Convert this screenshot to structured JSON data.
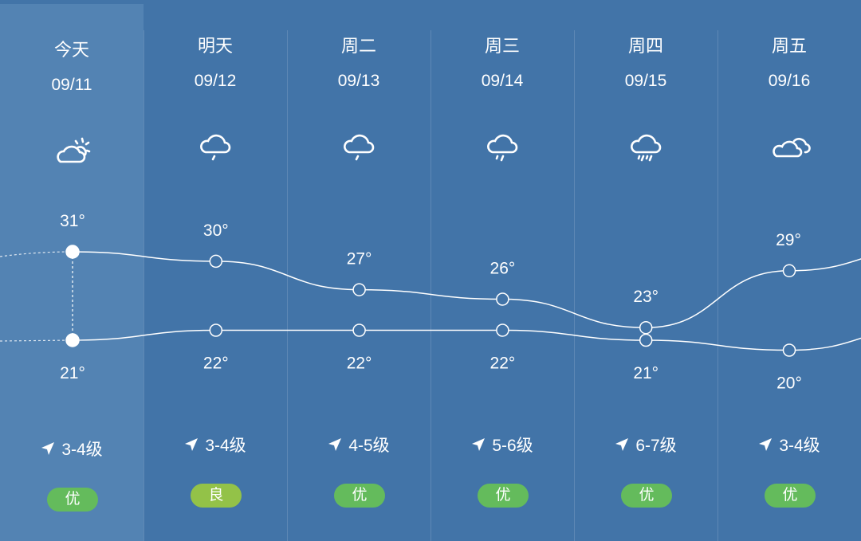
{
  "colors": {
    "background": "#4274a8",
    "today_background": "#5383b3",
    "badge_good": "#64bb5c",
    "badge_moderate": "#93c248"
  },
  "days": [
    {
      "day": "今天",
      "date": "09/11",
      "icon": "partly-cloudy-icon",
      "high": 31,
      "high_label": "31°",
      "low": 21,
      "low_label": "21°",
      "wind": "3-4级",
      "aqi": "优",
      "aqi_level": "good"
    },
    {
      "day": "明天",
      "date": "09/12",
      "icon": "light-rain-icon",
      "high": 30,
      "high_label": "30°",
      "low": 22,
      "low_label": "22°",
      "wind": "3-4级",
      "aqi": "良",
      "aqi_level": "moderate"
    },
    {
      "day": "周二",
      "date": "09/13",
      "icon": "light-rain-icon",
      "high": 27,
      "high_label": "27°",
      "low": 22,
      "low_label": "22°",
      "wind": "4-5级",
      "aqi": "优",
      "aqi_level": "good"
    },
    {
      "day": "周三",
      "date": "09/14",
      "icon": "moderate-rain-icon",
      "high": 26,
      "high_label": "26°",
      "low": 22,
      "low_label": "22°",
      "wind": "5-6级",
      "aqi": "优",
      "aqi_level": "good"
    },
    {
      "day": "周四",
      "date": "09/15",
      "icon": "heavy-rain-icon",
      "high": 23,
      "high_label": "23°",
      "low": 21,
      "low_label": "21°",
      "wind": "6-7级",
      "aqi": "优",
      "aqi_level": "good"
    },
    {
      "day": "周五",
      "date": "09/16",
      "icon": "cloudy-icon",
      "high": 29,
      "high_label": "29°",
      "low": 20,
      "low_label": "20°",
      "wind": "3-4级",
      "aqi": "优",
      "aqi_level": "good"
    }
  ]
}
